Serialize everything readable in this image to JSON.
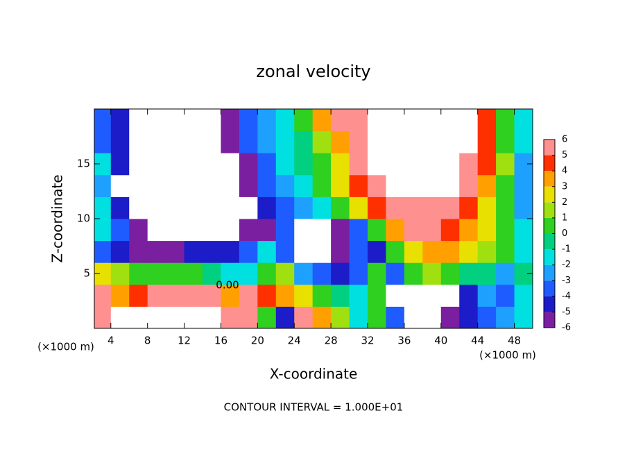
{
  "chart_data": {
    "type": "heatmap",
    "title": "zonal velocity",
    "xlabel": "X-coordinate",
    "ylabel": "Z-coordinate",
    "x_unit": "(×1000 m)",
    "y_unit": "(×1000 m)",
    "footer": "CONTOUR INTERVAL = 1.000E+01",
    "annotations": [
      "0.00"
    ],
    "xlim": [
      2.2,
      50
    ],
    "ylim": [
      0,
      20
    ],
    "xticks": [
      4,
      8,
      12,
      16,
      20,
      24,
      28,
      32,
      36,
      40,
      44,
      48
    ],
    "yticks": [
      5,
      10,
      15
    ],
    "x": [
      3,
      5,
      7,
      9,
      11,
      13,
      15,
      17,
      19,
      21,
      23,
      25,
      27,
      29,
      31,
      33,
      35,
      37,
      39,
      41,
      43,
      45,
      47,
      49
    ],
    "y": [
      1,
      3,
      5,
      7,
      9,
      11,
      13,
      15,
      17,
      19
    ],
    "values": [
      [
        6,
        8,
        8,
        8,
        8,
        8,
        8,
        6,
        5,
        0,
        -5,
        5,
        3,
        1,
        -2,
        0,
        -4,
        -8,
        -8,
        -6,
        -5,
        -4,
        -3,
        -2
      ],
      [
        5,
        3,
        4,
        5,
        6,
        6,
        5,
        3,
        5,
        4,
        3,
        2,
        0,
        -1,
        -2,
        0,
        -7,
        -8,
        -8,
        -8,
        -5,
        -3,
        -4,
        -2
      ],
      [
        2,
        1,
        0,
        0,
        0,
        0,
        -1,
        -2,
        -2,
        0,
        1,
        -3,
        -4,
        -5,
        -4,
        0,
        -4,
        0,
        1,
        0,
        -1,
        -1,
        -3,
        -1
      ],
      [
        -4,
        -5,
        -6,
        -6,
        -6,
        -5,
        -5,
        -5,
        -4,
        -2,
        -4,
        -8,
        -8,
        -6,
        -4,
        -5,
        0,
        2,
        3,
        3,
        2,
        1,
        0,
        -2
      ],
      [
        -2,
        -4,
        -6,
        -8,
        -8,
        -8,
        -8,
        -8,
        -6,
        -6,
        -4,
        -8,
        -8,
        -6,
        -4,
        0,
        3,
        5,
        5,
        4,
        3,
        2,
        0,
        -2
      ],
      [
        -2,
        -5,
        -8,
        -8,
        -8,
        -8,
        -8,
        -8,
        -7,
        -5,
        -4,
        -3,
        -2,
        0,
        2,
        4,
        5,
        6,
        6,
        5,
        4,
        2,
        0,
        -3
      ],
      [
        -3,
        -8,
        -8,
        -8,
        -8,
        -8,
        -8,
        -8,
        -6,
        -4,
        -3,
        -2,
        0,
        2,
        4,
        5,
        7,
        8,
        8,
        7,
        5,
        3,
        0,
        -3
      ],
      [
        -2,
        -5,
        -8,
        -8,
        -8,
        -8,
        -8,
        -8,
        -6,
        -4,
        -2,
        -1,
        0,
        2,
        5,
        7,
        8,
        8,
        8,
        8,
        6,
        4,
        1,
        -3
      ],
      [
        -4,
        -5,
        -8,
        -8,
        -8,
        -8,
        -8,
        -6,
        -4,
        -3,
        -2,
        -1,
        1,
        3,
        5,
        7,
        8,
        8,
        8,
        8,
        7,
        4,
        0,
        -2
      ],
      [
        -4,
        -5,
        -8,
        -8,
        -8,
        -8,
        -8,
        -6,
        -4,
        -3,
        -2,
        0,
        3,
        5,
        5,
        8,
        8,
        8,
        8,
        8,
        7,
        4,
        0,
        -2
      ]
    ],
    "clim": [
      -6,
      6
    ],
    "cticks": [
      -6,
      -5,
      -4,
      -3,
      -2,
      -1,
      0,
      1,
      2,
      3,
      4,
      5,
      6
    ],
    "colors": [
      "#7a1fa0",
      "#1c1cc8",
      "#1e5cff",
      "#1ea0ff",
      "#00e0e0",
      "#00d080",
      "#30d020",
      "#a0e010",
      "#e8e000",
      "#ffa000",
      "#ff3000",
      "#ff9090"
    ],
    "out_of_range_color": "#ffffff"
  }
}
